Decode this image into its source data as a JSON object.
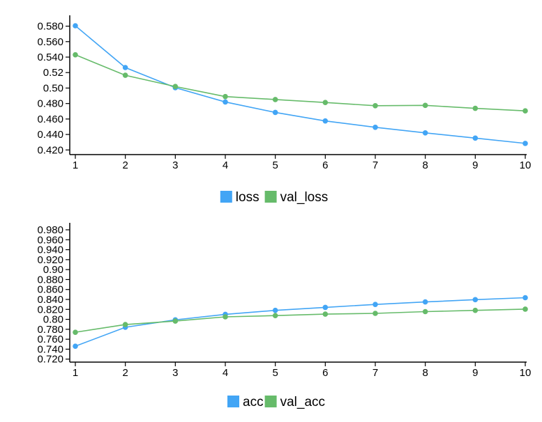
{
  "chart_data": [
    {
      "type": "line",
      "title": "",
      "xlabel": "",
      "ylabel": "",
      "x": [
        1,
        2,
        3,
        4,
        5,
        6,
        7,
        8,
        9,
        10
      ],
      "xticks": [
        "1",
        "2",
        "3",
        "4",
        "5",
        "6",
        "7",
        "8",
        "9",
        "10"
      ],
      "ylim": [
        0.414,
        0.594
      ],
      "yticks": [
        {
          "value": 0.42,
          "label": "0.420"
        },
        {
          "value": 0.44,
          "label": "0.440"
        },
        {
          "value": 0.46,
          "label": "0.460"
        },
        {
          "value": 0.48,
          "label": "0.480"
        },
        {
          "value": 0.5,
          "label": "0.50"
        },
        {
          "value": 0.52,
          "label": "0.52"
        },
        {
          "value": 0.54,
          "label": "0.540"
        },
        {
          "value": 0.56,
          "label": "0.560"
        },
        {
          "value": 0.58,
          "label": "0.580"
        }
      ],
      "grid": false,
      "legend_position": "bottom",
      "series": [
        {
          "name": "loss",
          "color": "#42a5f5",
          "values": [
            0.5805,
            0.5265,
            0.5005,
            0.482,
            0.4685,
            0.4575,
            0.4493,
            0.4421,
            0.4353,
            0.4285
          ]
        },
        {
          "name": "val_loss",
          "color": "#66bb6a",
          "values": [
            0.543,
            0.5165,
            0.502,
            0.489,
            0.4852,
            0.4813,
            0.4772,
            0.4776,
            0.4738,
            0.4705
          ]
        }
      ]
    },
    {
      "type": "line",
      "title": "",
      "xlabel": "",
      "ylabel": "",
      "x": [
        1,
        2,
        3,
        4,
        5,
        6,
        7,
        8,
        9,
        10
      ],
      "xticks": [
        "1",
        "2",
        "3",
        "4",
        "5",
        "6",
        "7",
        "8",
        "9",
        "10"
      ],
      "ylim": [
        0.714,
        0.994
      ],
      "yticks": [
        {
          "value": 0.72,
          "label": "0.720"
        },
        {
          "value": 0.74,
          "label": "0.740"
        },
        {
          "value": 0.76,
          "label": "0.760"
        },
        {
          "value": 0.78,
          "label": "0.780"
        },
        {
          "value": 0.8,
          "label": "0.80"
        },
        {
          "value": 0.82,
          "label": "0.820"
        },
        {
          "value": 0.84,
          "label": "0.840"
        },
        {
          "value": 0.86,
          "label": "0.860"
        },
        {
          "value": 0.88,
          "label": "0.880"
        },
        {
          "value": 0.9,
          "label": "0.90"
        },
        {
          "value": 0.92,
          "label": "0.920"
        },
        {
          "value": 0.94,
          "label": "0.940"
        },
        {
          "value": 0.96,
          "label": "0.960"
        },
        {
          "value": 0.98,
          "label": "0.980"
        }
      ],
      "grid": false,
      "legend_position": "bottom",
      "series": [
        {
          "name": "acc",
          "color": "#42a5f5",
          "values": [
            0.746,
            0.784,
            0.799,
            0.81,
            0.818,
            0.824,
            0.83,
            0.835,
            0.8395,
            0.8435
          ]
        },
        {
          "name": "val_acc",
          "color": "#66bb6a",
          "values": [
            0.774,
            0.7895,
            0.7965,
            0.805,
            0.8075,
            0.8105,
            0.812,
            0.8155,
            0.818,
            0.8205
          ]
        }
      ]
    }
  ]
}
